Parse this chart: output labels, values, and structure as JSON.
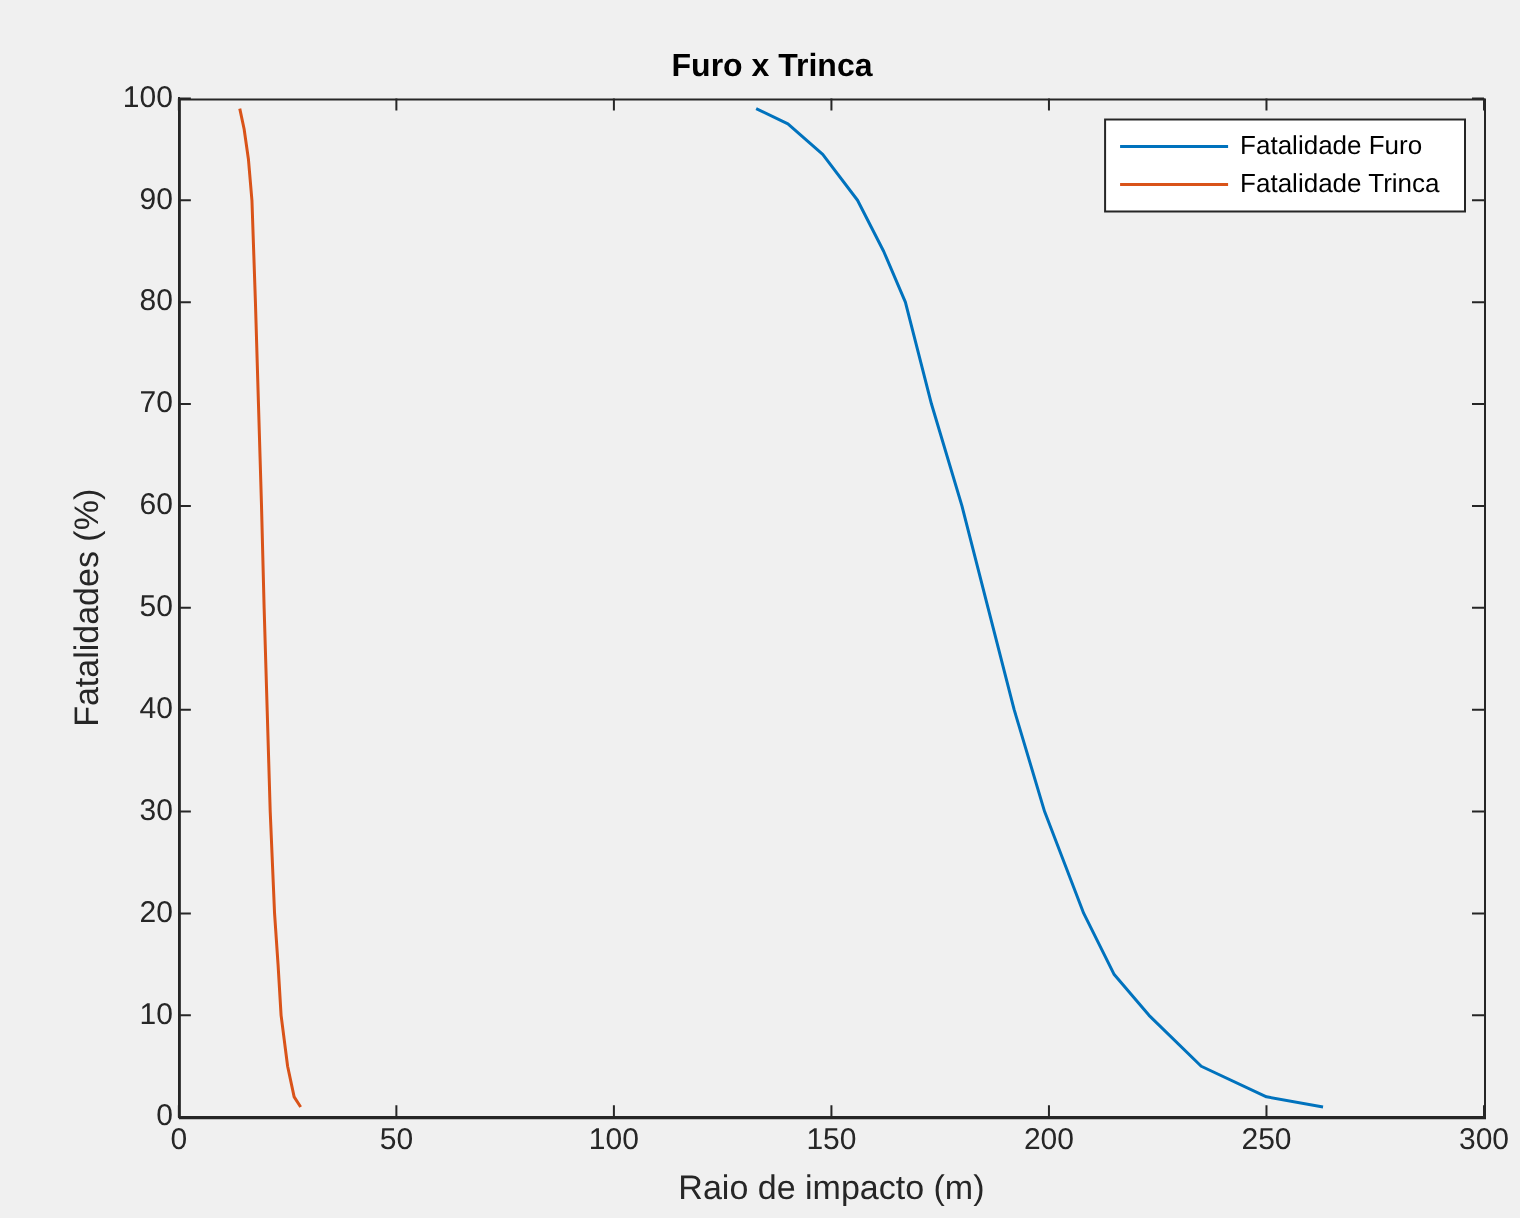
{
  "chart_data": {
    "type": "line",
    "title": "Furo x Trinca",
    "xlabel": "Raio de impacto (m)",
    "ylabel": "Fatalidades (%)",
    "series": [
      {
        "name": "Fatalidade Furo",
        "color": "#0072bd",
        "x": [
          132.7,
          140,
          148,
          156,
          162,
          167,
          173,
          180,
          186,
          192,
          199,
          208,
          215,
          223,
          235,
          250,
          263
        ],
        "values": [
          99,
          97.5,
          94.5,
          90,
          85,
          80,
          70,
          60,
          50,
          40,
          30,
          20,
          14,
          10,
          5,
          2,
          1
        ]
      },
      {
        "name": "Fatalidade Trinca",
        "color": "#d95319",
        "x": [
          14,
          15,
          16,
          16.8,
          17.6,
          18.3,
          19,
          19.6,
          20.3,
          21,
          22,
          22.8,
          23.5,
          25,
          26.5,
          28
        ],
        "values": [
          99,
          97,
          94,
          90,
          80,
          70,
          60,
          50,
          40,
          30,
          20,
          15,
          10,
          5,
          2,
          1
        ]
      }
    ],
    "xlim": [
      0,
      300
    ],
    "xticks": [
      0,
      50,
      100,
      150,
      200,
      250,
      300
    ],
    "ylim": [
      0,
      100
    ],
    "yticks": [
      0,
      10,
      20,
      30,
      40,
      50,
      60,
      70,
      80,
      90,
      100
    ],
    "grid": false,
    "legend": "top right",
    "line_style": "solid",
    "marker": "none"
  }
}
